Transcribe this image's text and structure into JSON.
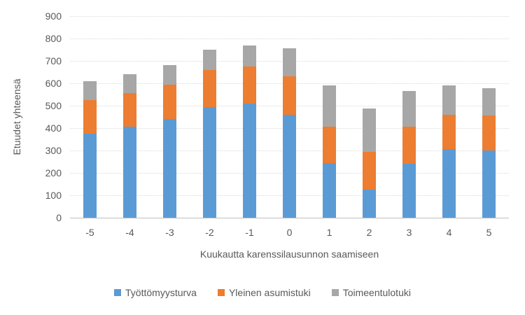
{
  "chart_data": {
    "type": "bar",
    "stacked": true,
    "categories": [
      "-5",
      "-4",
      "-3",
      "-2",
      "-1",
      "0",
      "1",
      "2",
      "3",
      "4",
      "5"
    ],
    "series": [
      {
        "name": "Työttömyysturva",
        "color": "#5B9BD5",
        "pattern": "solid",
        "values": [
          375,
          405,
          440,
          495,
          510,
          460,
          245,
          125,
          240,
          305,
          300
        ]
      },
      {
        "name": "Yleinen asumistuki",
        "color": "#ED7D31",
        "pattern": "solid",
        "values": [
          150,
          150,
          155,
          165,
          165,
          170,
          160,
          170,
          165,
          155,
          155
        ]
      },
      {
        "name": "Toimeentulotuki",
        "color": "#A7A7A7",
        "pattern": "dotted",
        "values": [
          85,
          85,
          85,
          90,
          95,
          125,
          185,
          193,
          162,
          130,
          123
        ]
      }
    ],
    "stack_totals": [
      610,
      640,
      680,
      750,
      770,
      755,
      590,
      488,
      567,
      590,
      578
    ],
    "title": "",
    "xlabel": "Kuukautta karenssilausunnon saamiseen",
    "ylabel": "Etuudet yhteensä",
    "ylim": [
      0,
      900
    ],
    "ytick_step": 100,
    "y_ticks": [
      "0",
      "100",
      "200",
      "300",
      "400",
      "500",
      "600",
      "700",
      "800",
      "900"
    ],
    "grid": true,
    "legend_position": "bottom"
  },
  "colors": {
    "background": "#FFFFFF",
    "text": "#595959",
    "gridline": "#D9D9D9",
    "axis_line": "#BFBFBF",
    "pattern_dot": "#8C8C8C"
  }
}
